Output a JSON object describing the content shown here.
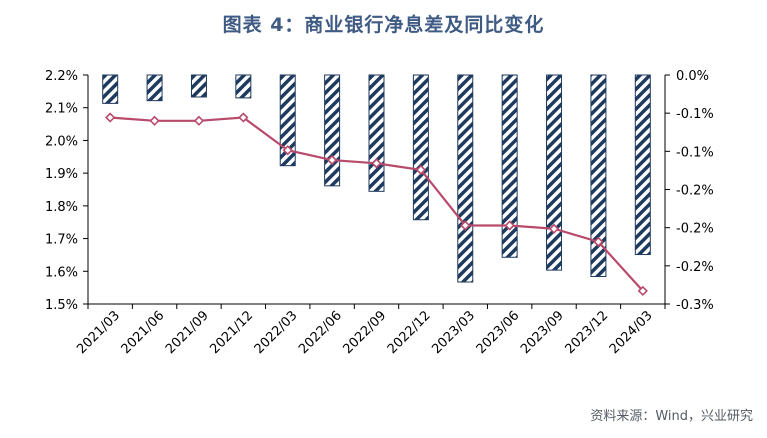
{
  "title": "图表 4：商业银行净息差及同比变化",
  "source": "资料来源：Wind，兴业研究",
  "chart_data": {
    "type": "bar+line",
    "categories": [
      "2021/03",
      "2021/06",
      "2021/09",
      "2021/12",
      "2022/03",
      "2022/06",
      "2022/09",
      "2022/12",
      "2023/03",
      "2023/06",
      "2023/09",
      "2023/12",
      "2024/03"
    ],
    "series": [
      {
        "axis": "left",
        "render": "line",
        "values": [
          2.07,
          2.06,
          2.06,
          2.07,
          1.97,
          1.94,
          1.93,
          1.91,
          1.74,
          1.74,
          1.73,
          1.69,
          1.54
        ]
      },
      {
        "axis": "right",
        "render": "bar",
        "values": [
          -0.031,
          -0.028,
          -0.024,
          -0.025,
          -0.099,
          -0.121,
          -0.127,
          -0.158,
          -0.226,
          -0.199,
          -0.213,
          -0.22,
          -0.196
        ]
      }
    ],
    "left_axis": {
      "ylim": [
        1.5,
        2.2
      ],
      "ticks": [
        "1.5%",
        "1.6%",
        "1.7%",
        "1.8%",
        "1.9%",
        "2.0%",
        "2.1%",
        "2.2%"
      ]
    },
    "right_axis": {
      "ylim": [
        -0.25,
        0.0
      ],
      "ticks": [
        "-0.3%",
        "-0.2%",
        "-0.2%",
        "-0.2%",
        "-0.1%",
        "-0.1%",
        "0.0%"
      ]
    },
    "colors": {
      "line": "#b84a6b",
      "bar": "#1f3a5f",
      "title": "#3f5b84"
    },
    "grid": false
  }
}
